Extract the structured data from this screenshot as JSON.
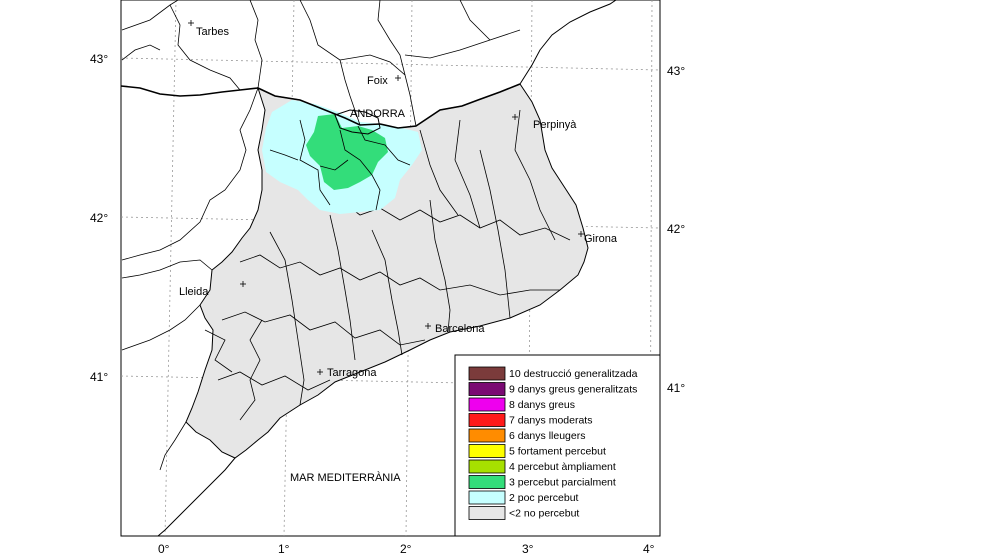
{
  "map": {
    "places": {
      "tarbes": "Tarbes",
      "foix": "Foix",
      "andorra": "ANDORRA",
      "perpinya": "Perpinyà",
      "girona": "Girona",
      "lleida": "Lleida",
      "barcelona": "Barcelona",
      "tarragona": "Tarragona",
      "sea": "MAR MEDITERRÀNIA"
    },
    "lat_left": [
      "43°",
      "42°",
      "41°"
    ],
    "lat_right": [
      "43°",
      "42°",
      "41°"
    ],
    "lon_bottom": [
      "0°",
      "1°",
      "2°",
      "3°",
      "4°"
    ]
  },
  "legend": {
    "items": [
      {
        "label": "10 destrucció generalitzada",
        "color": "#7b3b3b"
      },
      {
        "label": "9 danys greus generalitzats",
        "color": "#7a0a73"
      },
      {
        "label": "8 danys greus",
        "color": "#ee00ee"
      },
      {
        "label": "7 danys moderats",
        "color": "#ff1a1a"
      },
      {
        "label": "6 danys lleugers",
        "color": "#ff8c00"
      },
      {
        "label": "5 fortament percebut",
        "color": "#ffff00"
      },
      {
        "label": "4 percebut àmpliament",
        "color": "#a6e000"
      },
      {
        "label": "3 percebut parcialment",
        "color": "#33dd7a"
      },
      {
        "label": "2 poc percebut",
        "color": "#c6ffff"
      },
      {
        "label": "<2 no percebut",
        "color": "#e6e6e6"
      }
    ]
  }
}
